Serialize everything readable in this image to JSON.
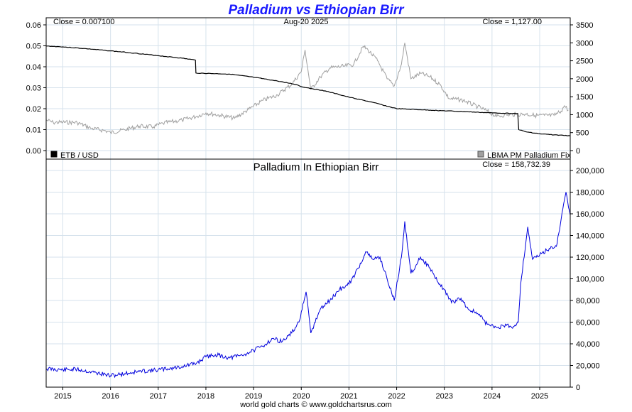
{
  "chart_data": [
    {
      "type": "line",
      "title": "Palladium vs Ethiopian Birr",
      "date_label": "Aug-20  2025",
      "left_close": "Close = 0.007100",
      "right_close": "Close = 1,127.00",
      "legend_left": "ETB / USD",
      "legend_right": "LBMA PM Palladium Fix",
      "legend_colors": {
        "ETB / USD": "#000000",
        "LBMA PM Palladium Fix": "#a0a0a0"
      },
      "x_ticks": [
        "2015",
        "2016",
        "2017",
        "2018",
        "2019",
        "2020",
        "2021",
        "2022",
        "2023",
        "2024",
        "2025"
      ],
      "y_left_ticks": [
        "0.06",
        "0.05",
        "0.04",
        "0.03",
        "0.02",
        "0.01",
        "0.00"
      ],
      "y_right_ticks": [
        "3500",
        "3000",
        "2500",
        "2000",
        "1500",
        "1000",
        "500",
        "0"
      ],
      "y_left_range": [
        0,
        0.06
      ],
      "y_right_range": [
        0,
        3500
      ],
      "x_range": [
        2014.65,
        2025.64
      ],
      "series": [
        {
          "name": "ETB / USD",
          "axis": "left",
          "color": "#000000",
          "points": [
            [
              2014.65,
              0.0499
            ],
            [
              2015.0,
              0.0495
            ],
            [
              2015.5,
              0.0486
            ],
            [
              2016.0,
              0.0476
            ],
            [
              2016.5,
              0.0465
            ],
            [
              2017.0,
              0.0453
            ],
            [
              2017.5,
              0.0441
            ],
            [
              2017.78,
              0.0432
            ],
            [
              2017.79,
              0.037
            ],
            [
              2018.5,
              0.0365
            ],
            [
              2019.0,
              0.035
            ],
            [
              2019.5,
              0.0332
            ],
            [
              2019.9,
              0.0315
            ],
            [
              2020.0,
              0.0305
            ],
            [
              2020.5,
              0.0285
            ],
            [
              2021.0,
              0.0255
            ],
            [
              2021.5,
              0.023
            ],
            [
              2022.0,
              0.02
            ],
            [
              2022.5,
              0.0195
            ],
            [
              2023.0,
              0.019
            ],
            [
              2023.5,
              0.0185
            ],
            [
              2024.0,
              0.018
            ],
            [
              2024.54,
              0.0177
            ],
            [
              2024.56,
              0.01
            ],
            [
              2024.7,
              0.009
            ],
            [
              2025.0,
              0.008
            ],
            [
              2025.3,
              0.0075
            ],
            [
              2025.64,
              0.0071
            ]
          ]
        },
        {
          "name": "LBMA PM Palladium Fix",
          "axis": "right",
          "color": "#a0a0a0",
          "points": [
            [
              2014.65,
              850
            ],
            [
              2014.8,
              780
            ],
            [
              2015.0,
              790
            ],
            [
              2015.3,
              780
            ],
            [
              2015.6,
              620
            ],
            [
              2015.9,
              550
            ],
            [
              2016.0,
              500
            ],
            [
              2016.3,
              580
            ],
            [
              2016.6,
              680
            ],
            [
              2016.9,
              660
            ],
            [
              2017.1,
              760
            ],
            [
              2017.5,
              850
            ],
            [
              2017.8,
              950
            ],
            [
              2018.0,
              1050
            ],
            [
              2018.3,
              980
            ],
            [
              2018.6,
              900
            ],
            [
              2018.9,
              1150
            ],
            [
              2019.2,
              1400
            ],
            [
              2019.5,
              1550
            ],
            [
              2019.8,
              1850
            ],
            [
              2020.0,
              2200
            ],
            [
              2020.08,
              2800
            ],
            [
              2020.2,
              1700
            ],
            [
              2020.4,
              2050
            ],
            [
              2020.6,
              2300
            ],
            [
              2020.9,
              2350
            ],
            [
              2021.1,
              2400
            ],
            [
              2021.3,
              2900
            ],
            [
              2021.4,
              2800
            ],
            [
              2021.6,
              2500
            ],
            [
              2021.8,
              2000
            ],
            [
              2021.95,
              1800
            ],
            [
              2022.1,
              2400
            ],
            [
              2022.17,
              3000
            ],
            [
              2022.3,
              2000
            ],
            [
              2022.5,
              2150
            ],
            [
              2022.7,
              2050
            ],
            [
              2022.9,
              1850
            ],
            [
              2023.1,
              1450
            ],
            [
              2023.4,
              1400
            ],
            [
              2023.7,
              1220
            ],
            [
              2023.9,
              1100
            ],
            [
              2024.1,
              950
            ],
            [
              2024.3,
              1000
            ],
            [
              2024.5,
              1000
            ],
            [
              2024.7,
              1020
            ],
            [
              2024.9,
              980
            ],
            [
              2025.1,
              980
            ],
            [
              2025.3,
              980
            ],
            [
              2025.45,
              1100
            ],
            [
              2025.52,
              1250
            ],
            [
              2025.6,
              1127
            ]
          ]
        }
      ]
    },
    {
      "type": "line",
      "title": "Palladium In Ethiopian Birr",
      "right_close": "Close = 158,732.39",
      "x_ticks": [
        "2015",
        "2016",
        "2017",
        "2018",
        "2019",
        "2020",
        "2021",
        "2022",
        "2023",
        "2024",
        "2025"
      ],
      "y_right_ticks": [
        "200,000",
        "180,000",
        "160,000",
        "140,000",
        "120,000",
        "100,000",
        "80,000",
        "60,000",
        "40,000",
        "20,000",
        "0"
      ],
      "y_range": [
        0,
        200000
      ],
      "x_range": [
        2014.65,
        2025.64
      ],
      "series": [
        {
          "name": "Palladium In Ethiopian Birr",
          "color": "#0000dd",
          "points": [
            [
              2014.65,
              17000
            ],
            [
              2015.0,
              16000
            ],
            [
              2015.3,
              16500
            ],
            [
              2015.6,
              14000
            ],
            [
              2015.9,
              11500
            ],
            [
              2016.0,
              10500
            ],
            [
              2016.3,
              12500
            ],
            [
              2016.6,
              14500
            ],
            [
              2016.9,
              15500
            ],
            [
              2017.2,
              17000
            ],
            [
              2017.5,
              19000
            ],
            [
              2017.8,
              22000
            ],
            [
              2018.0,
              28000
            ],
            [
              2018.2,
              30000
            ],
            [
              2018.5,
              27000
            ],
            [
              2018.8,
              30000
            ],
            [
              2019.0,
              34000
            ],
            [
              2019.2,
              38000
            ],
            [
              2019.4,
              45000
            ],
            [
              2019.6,
              42000
            ],
            [
              2019.8,
              50000
            ],
            [
              2019.95,
              60000
            ],
            [
              2020.05,
              78000
            ],
            [
              2020.1,
              88000
            ],
            [
              2020.2,
              50000
            ],
            [
              2020.4,
              72000
            ],
            [
              2020.6,
              80000
            ],
            [
              2020.8,
              90000
            ],
            [
              2021.0,
              95000
            ],
            [
              2021.2,
              110000
            ],
            [
              2021.35,
              125000
            ],
            [
              2021.5,
              118000
            ],
            [
              2021.65,
              120000
            ],
            [
              2021.8,
              100000
            ],
            [
              2021.95,
              80000
            ],
            [
              2022.1,
              120000
            ],
            [
              2022.17,
              153000
            ],
            [
              2022.3,
              105000
            ],
            [
              2022.5,
              120000
            ],
            [
              2022.7,
              110000
            ],
            [
              2022.85,
              98000
            ],
            [
              2023.0,
              90000
            ],
            [
              2023.15,
              78000
            ],
            [
              2023.35,
              82000
            ],
            [
              2023.5,
              72000
            ],
            [
              2023.7,
              68000
            ],
            [
              2023.9,
              58000
            ],
            [
              2024.1,
              55000
            ],
            [
              2024.3,
              57000
            ],
            [
              2024.45,
              56000
            ],
            [
              2024.55,
              60000
            ],
            [
              2024.6,
              95000
            ],
            [
              2024.75,
              148000
            ],
            [
              2024.85,
              118000
            ],
            [
              2025.0,
              122000
            ],
            [
              2025.2,
              128000
            ],
            [
              2025.35,
              130000
            ],
            [
              2025.45,
              155000
            ],
            [
              2025.55,
              180000
            ],
            [
              2025.64,
              158732
            ]
          ]
        }
      ]
    }
  ],
  "footer": "world gold charts © www.goldchartsrus.com"
}
